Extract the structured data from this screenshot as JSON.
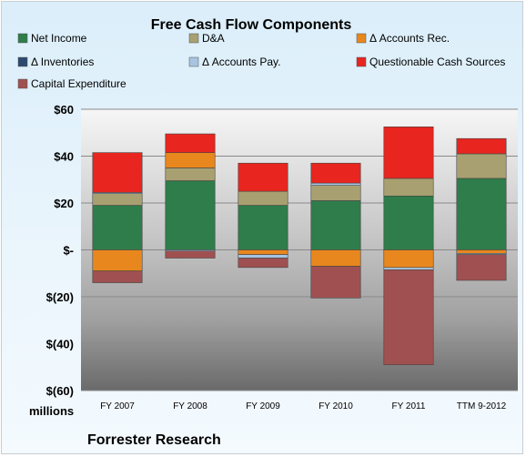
{
  "chart_data": {
    "type": "bar",
    "stacked": true,
    "title": "Free Cash Flow Components",
    "unit_label": "millions",
    "footer": "Forrester Research",
    "categories": [
      "FY 2007",
      "FY 2008",
      "FY 2009",
      "FY 2010",
      "FY 2011",
      "TTM 9-2012"
    ],
    "y_ticks": [
      "$60",
      "$40",
      "$20",
      "$-",
      "$(20)",
      "$(40)",
      "$(60)"
    ],
    "ylim": [
      -60,
      60
    ],
    "grid": true,
    "legend_position": "top",
    "series": [
      {
        "name": "Net Income",
        "color": "#2e7d4a",
        "values": [
          19,
          29.5,
          19,
          21,
          23,
          30.5
        ]
      },
      {
        "name": "D&A",
        "color": "#a8a070",
        "values": [
          5,
          5.5,
          6,
          6.5,
          7.5,
          10.5
        ]
      },
      {
        "name": "Δ Accounts Rec.",
        "color": "#e8871e",
        "values": [
          -9,
          6.5,
          -2,
          -7,
          -7.5,
          -1.5
        ]
      },
      {
        "name": "Δ Inventories",
        "color": "#2c4a6e",
        "values": [
          0,
          0,
          0,
          0,
          0,
          0
        ]
      },
      {
        "name": "Δ Accounts Pay.",
        "color": "#a8c4e0",
        "values": [
          0.5,
          -0.5,
          -1.5,
          1,
          -1,
          -0.5
        ]
      },
      {
        "name": "Questionable Cash Sources",
        "color": "#e8251f",
        "values": [
          17,
          8,
          12,
          8.5,
          22,
          6.5
        ]
      },
      {
        "name": "Capital Expenditure",
        "color": "#a05050",
        "values": [
          -5,
          -3,
          -4,
          -13.5,
          -40.5,
          -11
        ]
      }
    ]
  }
}
